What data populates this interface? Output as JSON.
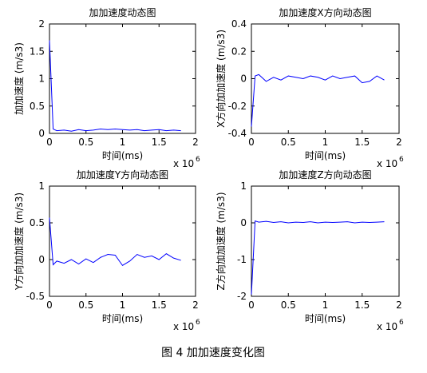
{
  "chart_data": [
    {
      "type": "line",
      "title": "加加速度动态图",
      "xlabel": "时间(ms)",
      "ylabel": "加加速度 (m/s3)",
      "x": [
        0,
        0.05,
        0.1,
        0.2,
        0.3,
        0.4,
        0.5,
        0.6,
        0.7,
        0.8,
        0.9,
        1,
        1.1,
        1.2,
        1.3,
        1.4,
        1.5,
        1.6,
        1.7,
        1.8
      ],
      "values": [
        1.7,
        0.08,
        0.05,
        0.06,
        0.04,
        0.07,
        0.05,
        0.06,
        0.08,
        0.07,
        0.08,
        0.07,
        0.06,
        0.07,
        0.05,
        0.06,
        0.07,
        0.05,
        0.06,
        0.05
      ],
      "color": "#0000ff",
      "xlim": [
        0,
        2
      ],
      "xticks": [
        0,
        0.5,
        1,
        1.5,
        2
      ],
      "ylim": [
        0,
        2
      ],
      "yticks": [
        0,
        0.5,
        1,
        1.5,
        2
      ],
      "x_scale_label": "x 10",
      "x_scale_exponent": "6"
    },
    {
      "type": "line",
      "title": "加加速度X方向动态图",
      "xlabel": "时间(ms)",
      "ylabel": "X方向加加速度 (m/s3)",
      "x": [
        0,
        0.05,
        0.1,
        0.2,
        0.3,
        0.4,
        0.5,
        0.6,
        0.7,
        0.8,
        0.9,
        1,
        1.1,
        1.2,
        1.3,
        1.4,
        1.5,
        1.6,
        1.7,
        1.8
      ],
      "values": [
        -0.35,
        0.02,
        0.03,
        -0.02,
        0.01,
        -0.01,
        0.02,
        0.01,
        0,
        0.02,
        0.01,
        -0.01,
        0.02,
        0,
        0.01,
        0.02,
        -0.03,
        -0.02,
        0.02,
        -0.01
      ],
      "color": "#0000ff",
      "xlim": [
        0,
        2
      ],
      "xticks": [
        0,
        0.5,
        1,
        1.5,
        2
      ],
      "ylim": [
        -0.4,
        0.4
      ],
      "yticks": [
        -0.4,
        -0.2,
        0,
        0.2,
        0.4
      ],
      "x_scale_label": "x 10",
      "x_scale_exponent": "6"
    },
    {
      "type": "line",
      "title": "加加速度Y方向动态图",
      "xlabel": "时间(ms)",
      "ylabel": "Y方向加加速度 (m/s3)",
      "x": [
        0,
        0.05,
        0.1,
        0.2,
        0.3,
        0.4,
        0.5,
        0.6,
        0.7,
        0.8,
        0.9,
        1,
        1.1,
        1.2,
        1.3,
        1.4,
        1.5,
        1.6,
        1.7,
        1.8
      ],
      "values": [
        0.57,
        -0.07,
        -0.02,
        -0.05,
        0,
        -0.06,
        0.01,
        -0.04,
        0.03,
        0.07,
        0.06,
        -0.08,
        -0.02,
        0.07,
        0.03,
        0.05,
        0,
        0.08,
        0.02,
        -0.01
      ],
      "color": "#0000ff",
      "xlim": [
        0,
        2
      ],
      "xticks": [
        0,
        0.5,
        1,
        1.5,
        2
      ],
      "ylim": [
        -0.5,
        1
      ],
      "yticks": [
        -0.5,
        0,
        0.5,
        1
      ],
      "x_scale_label": "x 10",
      "x_scale_exponent": "6"
    },
    {
      "type": "line",
      "title": "加加速度Z方向动态图",
      "xlabel": "时间(ms)",
      "ylabel": "Z方向加加速度 (m/s3)",
      "x": [
        0,
        0.05,
        0.1,
        0.2,
        0.3,
        0.4,
        0.5,
        0.6,
        0.7,
        0.8,
        0.9,
        1,
        1.1,
        1.2,
        1.3,
        1.4,
        1.5,
        1.6,
        1.7,
        1.8
      ],
      "values": [
        -1.95,
        0.05,
        0.02,
        0.04,
        0.01,
        0.03,
        0,
        0.02,
        0.01,
        0.03,
        0,
        0.02,
        0.01,
        0.02,
        0.03,
        0,
        0.02,
        0.01,
        0.02,
        0.03
      ],
      "color": "#0000ff",
      "xlim": [
        0,
        2
      ],
      "xticks": [
        0,
        0.5,
        1,
        1.5,
        2
      ],
      "ylim": [
        -2,
        1
      ],
      "yticks": [
        -2,
        -1,
        0,
        1
      ],
      "x_scale_label": "x 10",
      "x_scale_exponent": "6"
    }
  ],
  "caption": "图 4 加加速度变化图"
}
